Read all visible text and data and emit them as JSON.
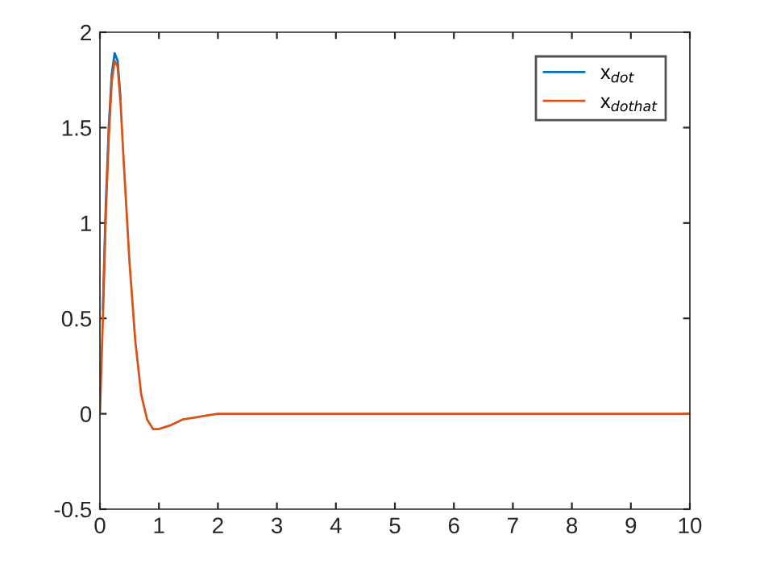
{
  "chart_data": {
    "type": "line",
    "xlim": [
      0,
      10
    ],
    "ylim": [
      -0.5,
      2
    ],
    "xticks": [
      0,
      1,
      2,
      3,
      4,
      5,
      6,
      7,
      8,
      9,
      10
    ],
    "yticks": [
      -0.5,
      0,
      0.5,
      1,
      1.5,
      2
    ],
    "grid": false,
    "legend": "top right",
    "marker": "none",
    "line_style": "solid",
    "series": [
      {
        "name": "x$_{dot}$",
        "color": "#0072bd",
        "x": [
          0.05,
          0.1,
          0.15,
          0.2,
          0.25,
          0.3,
          0.35
        ],
        "values": [
          0.55,
          1.1,
          1.5,
          1.78,
          1.89,
          1.85,
          1.65
        ]
      },
      {
        "name": "x$_{dothat}$",
        "color": "#d95319",
        "x": [
          0,
          0.05,
          0.1,
          0.15,
          0.2,
          0.25,
          0.3,
          0.35,
          0.4,
          0.5,
          0.6,
          0.7,
          0.8,
          0.9,
          1.0,
          1.1,
          1.2,
          1.4,
          1.6,
          1.8,
          2.0,
          2.5,
          3,
          10
        ],
        "values": [
          0,
          0.5,
          1.05,
          1.45,
          1.74,
          1.85,
          1.82,
          1.63,
          1.34,
          0.8,
          0.38,
          0.1,
          -0.03,
          -0.08,
          -0.08,
          -0.07,
          -0.06,
          -0.03,
          -0.02,
          -0.01,
          0,
          0,
          0,
          0
        ]
      }
    ]
  }
}
